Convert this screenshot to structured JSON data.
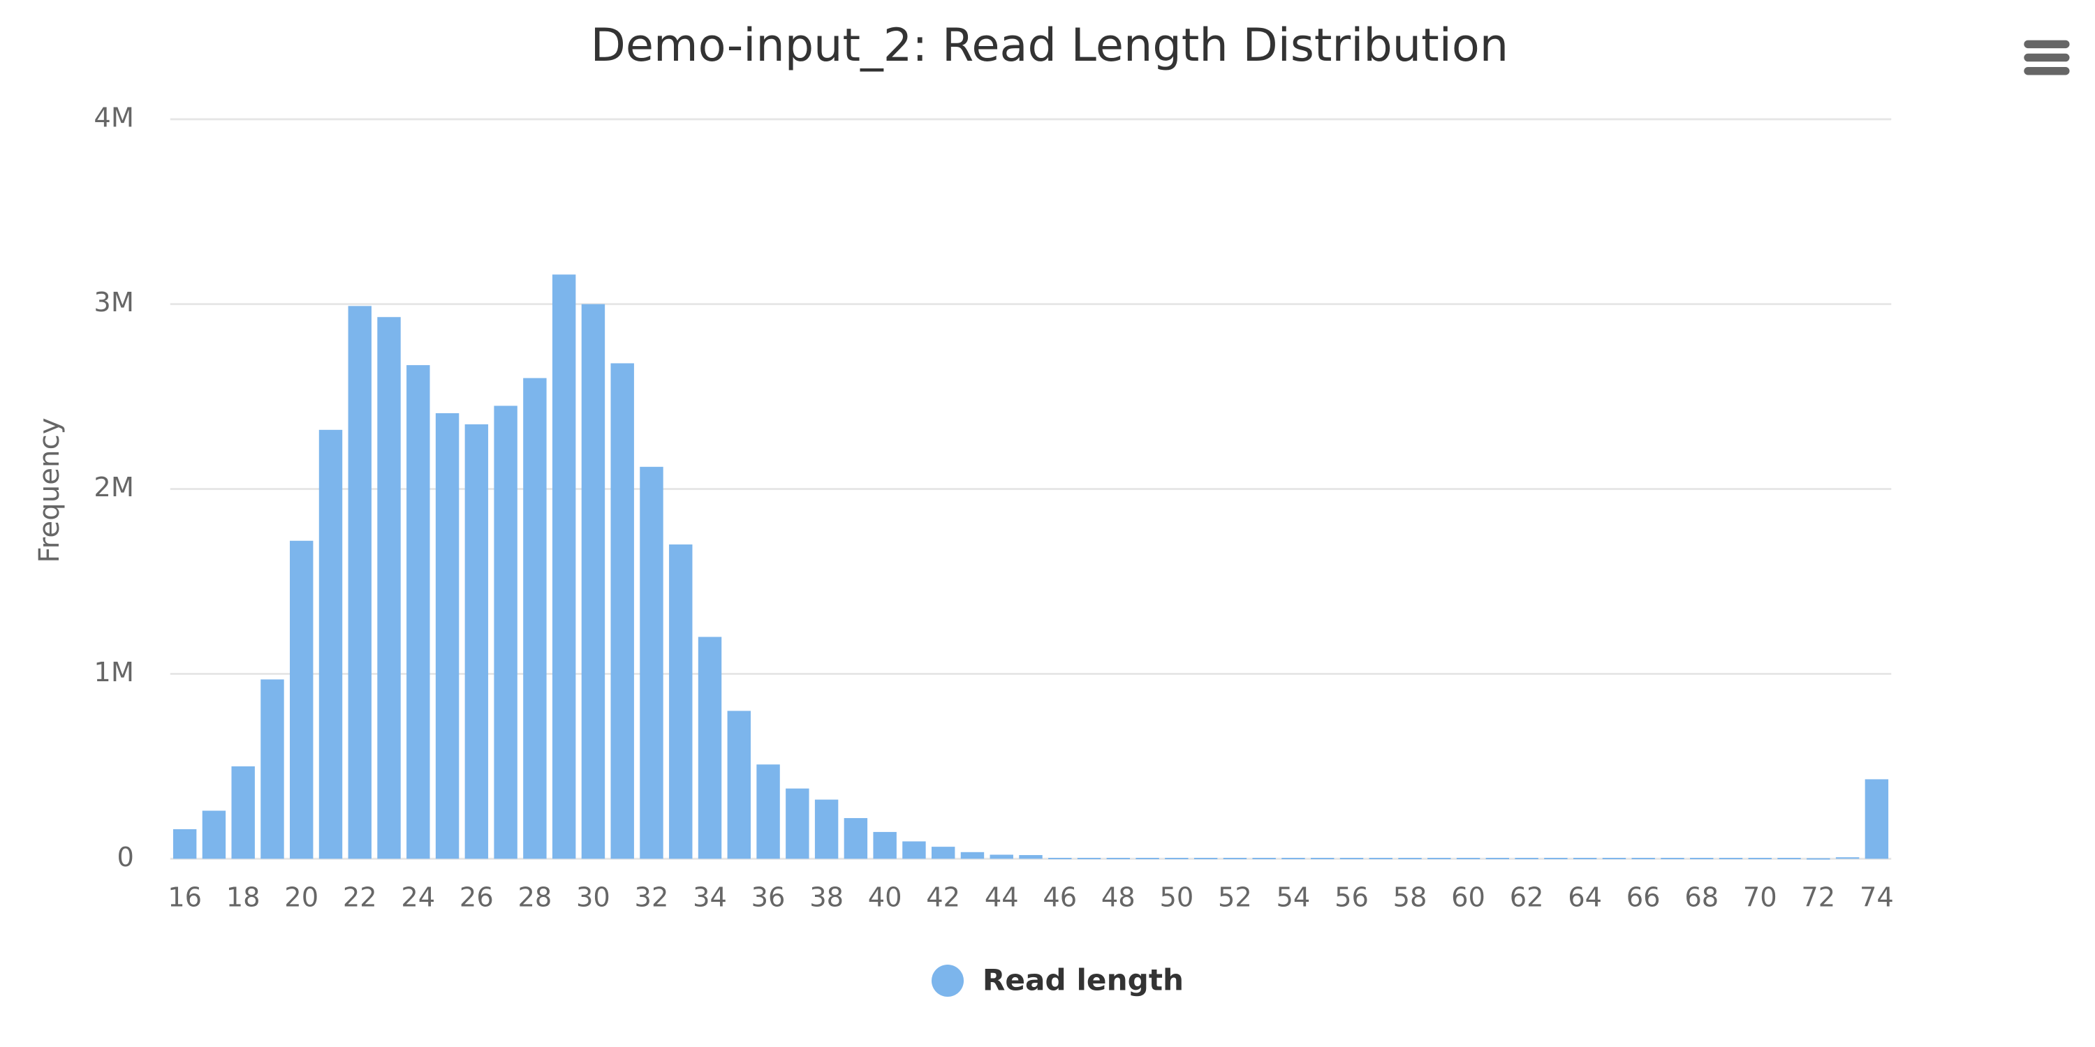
{
  "chart_data": {
    "type": "bar",
    "title": "Demo-input_2: Read Length Distribution",
    "y_label": "Frequency",
    "x": [
      16,
      17,
      18,
      19,
      20,
      21,
      22,
      23,
      24,
      25,
      26,
      27,
      28,
      29,
      30,
      31,
      32,
      33,
      34,
      35,
      36,
      37,
      38,
      39,
      40,
      41,
      42,
      43,
      44,
      45,
      46,
      47,
      48,
      49,
      50,
      51,
      52,
      53,
      54,
      55,
      56,
      57,
      58,
      59,
      60,
      61,
      62,
      63,
      64,
      65,
      66,
      67,
      68,
      69,
      70,
      71,
      72,
      73,
      74
    ],
    "series": [
      {
        "name": "Read length",
        "color": "#7cb5ec",
        "values": [
          160000,
          260000,
          500000,
          970000,
          1720000,
          2320000,
          2990000,
          2930000,
          2670000,
          2410000,
          2350000,
          2450000,
          2600000,
          3160000,
          3000000,
          2680000,
          2120000,
          1700000,
          1200000,
          800000,
          510000,
          380000,
          320000,
          220000,
          145000,
          94000,
          65000,
          36000,
          22000,
          20000,
          5000,
          5000,
          5000,
          5000,
          5000,
          5000,
          5000,
          5000,
          5000,
          5000,
          5000,
          5000,
          5000,
          5000,
          5000,
          5000,
          5000,
          5000,
          5000,
          5000,
          5000,
          5000,
          5000,
          5000,
          5000,
          5000,
          3000,
          8000,
          430000
        ]
      }
    ],
    "xlim": [
      15.5,
      74.5
    ],
    "xticks": [
      16,
      18,
      20,
      22,
      24,
      26,
      28,
      30,
      32,
      34,
      36,
      38,
      40,
      42,
      44,
      46,
      48,
      50,
      52,
      54,
      56,
      58,
      60,
      62,
      64,
      66,
      68,
      70,
      72,
      74
    ],
    "ylim": [
      0,
      4000000
    ],
    "yticks": [
      {
        "value": 0,
        "label": "0"
      },
      {
        "value": 1000000,
        "label": "1M"
      },
      {
        "value": 2000000,
        "label": "2M"
      },
      {
        "value": 3000000,
        "label": "3M"
      },
      {
        "value": 4000000,
        "label": "4M"
      }
    ],
    "grid": true
  }
}
